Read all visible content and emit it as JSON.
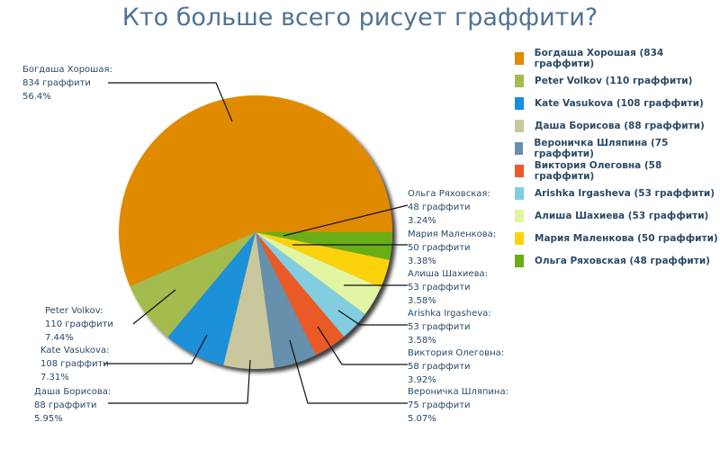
{
  "chart_data": {
    "type": "pie",
    "title": "Кто больше всего рисует граффити?",
    "legend_position": "right",
    "unit": "граффити",
    "slices": [
      {
        "name": "Богдаша Хорошая",
        "value": 834,
        "percent": "56.4%",
        "color": "#e08a00"
      },
      {
        "name": "Peter Volkov",
        "value": 110,
        "percent": "7.44%",
        "color": "#a4bb4e"
      },
      {
        "name": "Kate Vasukova",
        "value": 108,
        "percent": "7.31%",
        "color": "#1a90d8"
      },
      {
        "name": "Даша Борисова",
        "value": 88,
        "percent": "5.95%",
        "color": "#c8c79e"
      },
      {
        "name": "Вероничка Шляпина",
        "value": 75,
        "percent": "5.07%",
        "color": "#6690ab"
      },
      {
        "name": "Виктория Олеговна",
        "value": 58,
        "percent": "3.92%",
        "color": "#ea5a28"
      },
      {
        "name": "Arishka Irgasheva",
        "value": 53,
        "percent": "3.58%",
        "color": "#82cde0"
      },
      {
        "name": "Алиша Шахиева",
        "value": 53,
        "percent": "3.58%",
        "color": "#e2f5a2"
      },
      {
        "name": "Мария Маленкова",
        "value": 50,
        "percent": "3.38%",
        "color": "#fcd20c"
      },
      {
        "name": "Ольга Ряховская",
        "value": 48,
        "percent": "3.24%",
        "color": "#6aae12"
      }
    ]
  }
}
